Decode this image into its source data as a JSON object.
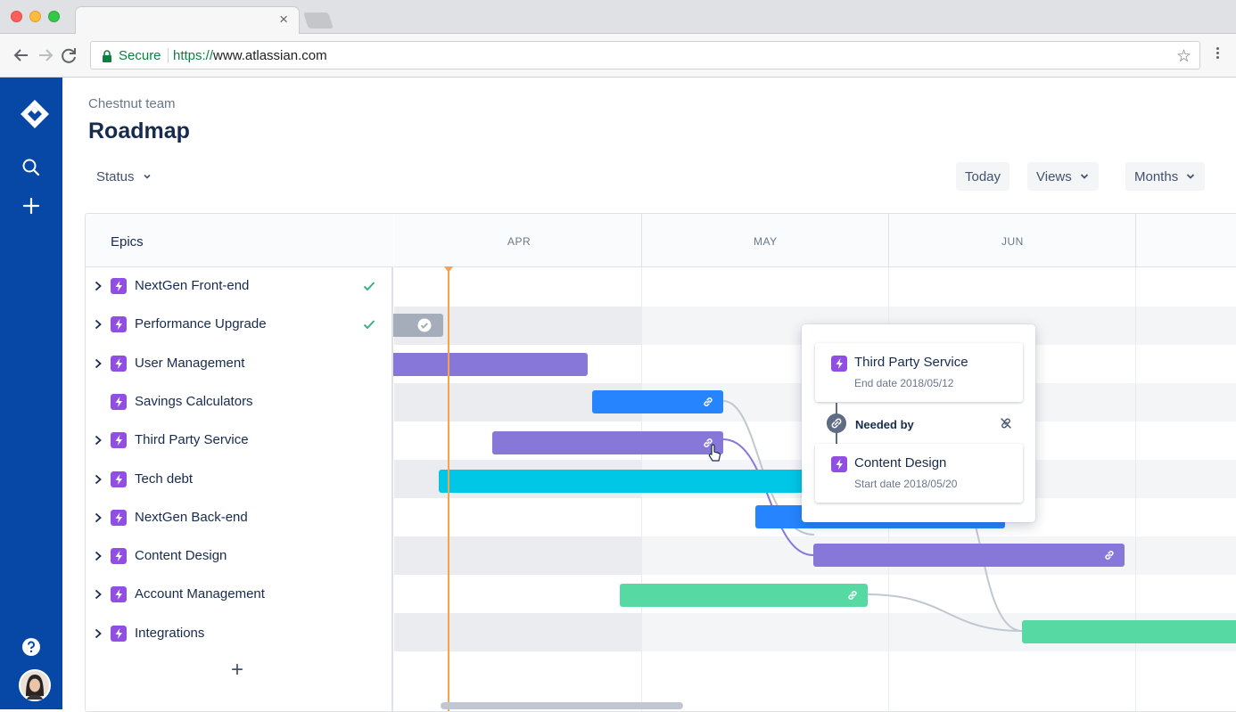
{
  "browser": {
    "tab_close": "×",
    "secure_label": "Secure",
    "url_scheme": "https://",
    "url_host": "www.atlassian.com",
    "star_glyph": "☆"
  },
  "header": {
    "breadcrumb": "Chestnut team",
    "title": "Roadmap"
  },
  "filters": {
    "status": "Status",
    "today": "Today",
    "views": "Views",
    "months": "Months"
  },
  "roadmap": {
    "list_header": "Epics",
    "add_glyph": "+",
    "months": [
      "APR",
      "MAY",
      "JUN"
    ],
    "epics": [
      {
        "label": "NextGen Front-end",
        "expandable": true,
        "done": true
      },
      {
        "label": "Performance Upgrade",
        "expandable": true,
        "done": true
      },
      {
        "label": "User Management",
        "expandable": true,
        "done": false
      },
      {
        "label": "Savings Calculators",
        "expandable": false,
        "done": false
      },
      {
        "label": "Third Party Service",
        "expandable": true,
        "done": false
      },
      {
        "label": "Tech debt",
        "expandable": true,
        "done": false
      },
      {
        "label": "NextGen Back-end",
        "expandable": true,
        "done": false
      },
      {
        "label": "Content Design",
        "expandable": true,
        "done": false
      },
      {
        "label": "Account Management",
        "expandable": true,
        "done": false
      },
      {
        "label": "Integrations",
        "expandable": true,
        "done": false
      }
    ]
  },
  "dependency_popup": {
    "source": {
      "title": "Third Party Service",
      "date": "End date 2018/05/12"
    },
    "relation": "Needed by",
    "target": {
      "title": "Content Design",
      "date": "Start date 2018/05/20"
    }
  },
  "colors": {
    "nav": "#0747a6",
    "epic": "#904ee2",
    "bar_purple": "#8777d9",
    "bar_blue": "#2684ff",
    "bar_cyan": "#00c7e6",
    "bar_green": "#57d9a3",
    "bar_grey": "#a5adba",
    "today": "#f6a34b",
    "done_check": "#36b37e"
  }
}
